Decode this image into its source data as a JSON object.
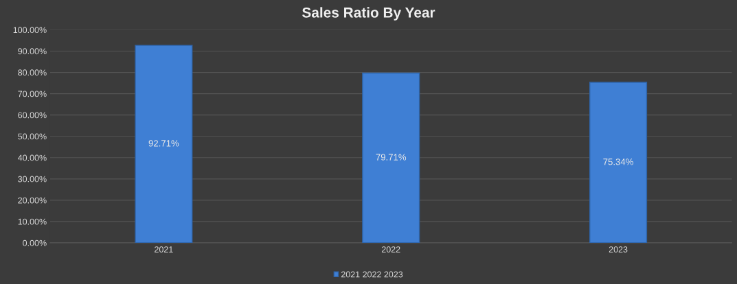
{
  "chart_data": {
    "type": "bar",
    "title": "Sales Ratio By Year",
    "categories": [
      "2021",
      "2022",
      "2023"
    ],
    "series": [
      {
        "name": "2021 2022 2023",
        "color": "#3f7fd4",
        "values": [
          92.71,
          79.71,
          75.34
        ],
        "value_labels": [
          "92.71%",
          "79.71%",
          "75.34%"
        ]
      }
    ],
    "ylim": [
      0,
      100
    ],
    "yticks": [
      {
        "value": 0,
        "label": "0.00%"
      },
      {
        "value": 10,
        "label": "10.00%"
      },
      {
        "value": 20,
        "label": "20.00%"
      },
      {
        "value": 30,
        "label": "30.00%"
      },
      {
        "value": 40,
        "label": "40.00%"
      },
      {
        "value": 50,
        "label": "50.00%"
      },
      {
        "value": 60,
        "label": "60.00%"
      },
      {
        "value": 70,
        "label": "70.00%"
      },
      {
        "value": 80,
        "label": "80.00%"
      },
      {
        "value": 90,
        "label": "90.00%"
      },
      {
        "value": 100,
        "label": "100.00%"
      }
    ],
    "grid": "y",
    "legend": "bottom"
  }
}
